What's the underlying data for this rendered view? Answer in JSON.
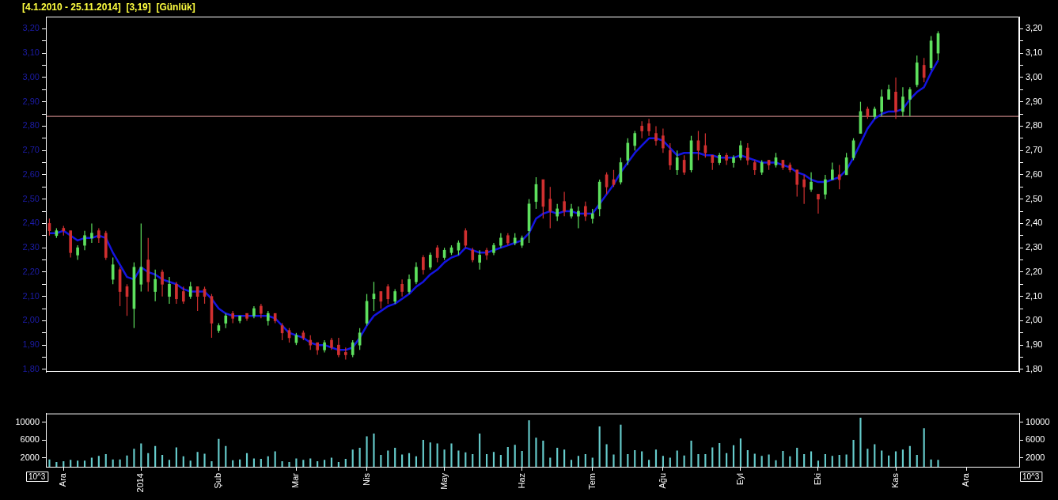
{
  "chart_data": [
    {
      "type": "candlestick",
      "title": "[4.1.2010 - 25.11.2014]  [3,19]  [Günlük]",
      "categories": [
        null,
        null,
        null,
        null,
        null,
        null,
        null,
        null,
        null,
        null,
        null,
        null,
        null,
        null,
        null,
        null,
        null,
        null,
        null,
        null,
        null,
        null,
        null,
        null,
        null,
        null,
        null,
        null,
        null,
        null,
        null,
        null,
        null,
        null,
        null,
        null,
        null,
        null,
        null,
        null,
        null,
        null,
        null,
        null,
        null,
        null,
        null,
        null,
        null,
        null,
        null,
        null,
        null,
        null,
        null,
        null,
        null,
        null,
        null,
        null,
        null,
        null,
        null,
        null,
        null,
        null,
        null,
        null,
        null,
        null,
        null,
        null,
        null,
        null,
        null,
        null,
        null,
        null,
        null,
        null,
        null,
        null,
        null,
        null,
        null,
        null,
        null,
        null,
        null,
        null,
        null,
        null,
        null,
        null,
        null,
        null,
        null,
        null,
        null,
        null,
        null,
        null,
        null,
        null,
        null,
        null,
        null,
        null,
        null,
        null,
        null,
        null,
        null,
        null,
        null,
        null,
        null,
        null,
        null,
        null,
        null,
        null,
        null,
        null,
        null,
        null,
        null,
        null,
        null,
        null,
        null,
        null,
        null,
        null,
        null,
        null,
        null,
        null
      ],
      "ohlc": [
        [
          2.4,
          2.42,
          2.35,
          2.37
        ],
        [
          2.35,
          2.38,
          2.34,
          2.37
        ],
        [
          2.38,
          2.39,
          2.35,
          2.37
        ],
        [
          2.37,
          2.37,
          2.26,
          2.28
        ],
        [
          2.27,
          2.31,
          2.25,
          2.3
        ],
        [
          2.31,
          2.37,
          2.29,
          2.35
        ],
        [
          2.34,
          2.4,
          2.32,
          2.36
        ],
        [
          2.37,
          2.38,
          2.32,
          2.34
        ],
        [
          2.36,
          2.37,
          2.25,
          2.26
        ],
        [
          2.17,
          2.26,
          2.15,
          2.23
        ],
        [
          2.21,
          2.22,
          2.06,
          2.12
        ],
        [
          2.14,
          2.15,
          2.02,
          2.1
        ],
        [
          2.05,
          2.24,
          1.97,
          2.22
        ],
        [
          2.15,
          2.4,
          2.12,
          2.22
        ],
        [
          2.25,
          2.34,
          2.12,
          2.16
        ],
        [
          2.12,
          2.21,
          2.08,
          2.17
        ],
        [
          2.2,
          2.21,
          2.1,
          2.15
        ],
        [
          2.1,
          2.18,
          2.07,
          2.15
        ],
        [
          2.15,
          2.16,
          2.07,
          2.09
        ],
        [
          2.12,
          2.14,
          2.07,
          2.08
        ],
        [
          2.1,
          2.16,
          2.09,
          2.14
        ],
        [
          2.14,
          2.14,
          2.04,
          2.1
        ],
        [
          2.13,
          2.14,
          2.07,
          2.1
        ],
        [
          2.1,
          2.11,
          1.93,
          1.99
        ],
        [
          1.96,
          1.99,
          1.95,
          1.98
        ],
        [
          1.99,
          2.03,
          1.97,
          2.02
        ],
        [
          2.03,
          2.04,
          1.99,
          2.01
        ],
        [
          2.0,
          2.02,
          1.99,
          2.02
        ],
        [
          2.03,
          2.03,
          2.0,
          2.01
        ],
        [
          2.02,
          2.06,
          2.01,
          2.05
        ],
        [
          2.06,
          2.07,
          2.01,
          2.03
        ],
        [
          2.0,
          2.04,
          1.98,
          2.03
        ],
        [
          2.03,
          2.03,
          1.99,
          2.0
        ],
        [
          1.98,
          1.99,
          1.92,
          1.95
        ],
        [
          1.96,
          1.97,
          1.91,
          1.93
        ],
        [
          1.91,
          1.95,
          1.9,
          1.94
        ],
        [
          1.95,
          1.96,
          1.92,
          1.93
        ],
        [
          1.92,
          1.94,
          1.88,
          1.9
        ],
        [
          1.91,
          1.91,
          1.86,
          1.88
        ],
        [
          1.88,
          1.92,
          1.87,
          1.91
        ],
        [
          1.92,
          1.93,
          1.88,
          1.89
        ],
        [
          1.9,
          1.93,
          1.85,
          1.86
        ],
        [
          1.87,
          1.89,
          1.84,
          1.86
        ],
        [
          1.86,
          1.92,
          1.85,
          1.91
        ],
        [
          1.9,
          1.97,
          1.88,
          1.95
        ],
        [
          1.99,
          2.11,
          1.98,
          2.08
        ],
        [
          2.09,
          2.16,
          2.04,
          2.11
        ],
        [
          2.12,
          2.12,
          2.05,
          2.08
        ],
        [
          2.14,
          2.15,
          2.07,
          2.09
        ],
        [
          2.08,
          2.13,
          2.07,
          2.12
        ],
        [
          2.15,
          2.17,
          2.1,
          2.12
        ],
        [
          2.12,
          2.19,
          2.11,
          2.17
        ],
        [
          2.16,
          2.24,
          2.15,
          2.22
        ],
        [
          2.26,
          2.27,
          2.19,
          2.21
        ],
        [
          2.22,
          2.28,
          2.21,
          2.27
        ],
        [
          2.3,
          2.31,
          2.24,
          2.26
        ],
        [
          2.26,
          2.3,
          2.25,
          2.29
        ],
        [
          2.28,
          2.31,
          2.27,
          2.3
        ],
        [
          2.29,
          2.33,
          2.27,
          2.32
        ],
        [
          2.37,
          2.38,
          2.3,
          2.31
        ],
        [
          2.29,
          2.3,
          2.24,
          2.25
        ],
        [
          2.24,
          2.29,
          2.21,
          2.27
        ],
        [
          2.29,
          2.3,
          2.25,
          2.27
        ],
        [
          2.28,
          2.32,
          2.27,
          2.31
        ],
        [
          2.31,
          2.36,
          2.3,
          2.34
        ],
        [
          2.35,
          2.36,
          2.31,
          2.32
        ],
        [
          2.32,
          2.36,
          2.31,
          2.34
        ],
        [
          2.31,
          2.35,
          2.3,
          2.34
        ],
        [
          2.37,
          2.5,
          2.32,
          2.48
        ],
        [
          2.49,
          2.59,
          2.46,
          2.56
        ],
        [
          2.58,
          2.58,
          2.42,
          2.47
        ],
        [
          2.5,
          2.55,
          2.38,
          2.45
        ],
        [
          2.43,
          2.48,
          2.41,
          2.46
        ],
        [
          2.49,
          2.53,
          2.43,
          2.45
        ],
        [
          2.43,
          2.48,
          2.42,
          2.46
        ],
        [
          2.43,
          2.47,
          2.38,
          2.45
        ],
        [
          2.47,
          2.49,
          2.41,
          2.43
        ],
        [
          2.42,
          2.46,
          2.4,
          2.44
        ],
        [
          2.46,
          2.58,
          2.43,
          2.57
        ],
        [
          2.6,
          2.61,
          2.52,
          2.55
        ],
        [
          2.58,
          2.62,
          2.55,
          2.56
        ],
        [
          2.57,
          2.67,
          2.56,
          2.65
        ],
        [
          2.66,
          2.75,
          2.64,
          2.73
        ],
        [
          2.72,
          2.78,
          2.7,
          2.77
        ],
        [
          2.8,
          2.82,
          2.75,
          2.78
        ],
        [
          2.81,
          2.83,
          2.76,
          2.78
        ],
        [
          2.77,
          2.8,
          2.72,
          2.74
        ],
        [
          2.76,
          2.79,
          2.69,
          2.71
        ],
        [
          2.7,
          2.73,
          2.62,
          2.64
        ],
        [
          2.62,
          2.7,
          2.6,
          2.67
        ],
        [
          2.66,
          2.68,
          2.6,
          2.61
        ],
        [
          2.62,
          2.76,
          2.61,
          2.74
        ],
        [
          2.74,
          2.78,
          2.66,
          2.7
        ],
        [
          2.72,
          2.77,
          2.67,
          2.69
        ],
        [
          2.68,
          2.68,
          2.62,
          2.65
        ],
        [
          2.65,
          2.69,
          2.64,
          2.68
        ],
        [
          2.68,
          2.69,
          2.64,
          2.66
        ],
        [
          2.65,
          2.68,
          2.63,
          2.67
        ],
        [
          2.67,
          2.74,
          2.66,
          2.72
        ],
        [
          2.71,
          2.73,
          2.64,
          2.66
        ],
        [
          2.65,
          2.66,
          2.6,
          2.62
        ],
        [
          2.61,
          2.66,
          2.6,
          2.65
        ],
        [
          2.66,
          2.66,
          2.62,
          2.64
        ],
        [
          2.64,
          2.69,
          2.63,
          2.67
        ],
        [
          2.66,
          2.66,
          2.62,
          2.63
        ],
        [
          2.64,
          2.65,
          2.61,
          2.62
        ],
        [
          2.62,
          2.62,
          2.51,
          2.56
        ],
        [
          2.58,
          2.6,
          2.48,
          2.55
        ],
        [
          2.54,
          2.61,
          2.53,
          2.57
        ],
        [
          2.52,
          2.52,
          2.44,
          2.5
        ],
        [
          2.52,
          2.6,
          2.5,
          2.58
        ],
        [
          2.58,
          2.65,
          2.58,
          2.62
        ],
        [
          2.6,
          2.64,
          2.54,
          2.58
        ],
        [
          2.6,
          2.69,
          2.6,
          2.67
        ],
        [
          2.67,
          2.75,
          2.66,
          2.74
        ],
        [
          2.77,
          2.9,
          2.77,
          2.86
        ],
        [
          2.87,
          2.88,
          2.83,
          2.84
        ],
        [
          2.84,
          2.88,
          2.83,
          2.87
        ],
        [
          2.86,
          2.95,
          2.84,
          2.92
        ],
        [
          2.91,
          2.97,
          2.91,
          2.95
        ],
        [
          2.94,
          3.0,
          2.83,
          2.86
        ],
        [
          2.86,
          2.96,
          2.84,
          2.92
        ],
        [
          2.91,
          2.96,
          2.84,
          2.95
        ],
        [
          2.97,
          3.09,
          2.96,
          3.06
        ],
        [
          3.05,
          3.08,
          2.98,
          3.0
        ],
        [
          3.04,
          3.17,
          3.03,
          3.15
        ],
        [
          3.1,
          3.19,
          3.07,
          3.18
        ],
        null,
        null,
        null,
        null,
        null,
        null,
        null,
        null,
        null,
        null,
        null
      ],
      "colors": [
        "#d03030",
        "#5ee05e",
        "#d03030",
        "#d03030",
        "#5ee05e",
        "#5ee05e",
        "#5ee05e",
        "#d03030",
        "#d03030",
        "#5ee05e",
        "#d03030",
        "#d03030",
        "#5ee05e",
        "#5ee05e",
        "#d03030",
        "#5ee05e",
        "#d03030",
        "#5ee05e",
        "#d03030",
        "#d03030",
        "#5ee05e",
        "#d03030",
        "#d03030",
        "#d03030",
        "#5ee05e",
        "#5ee05e",
        "#d03030",
        "#5ee05e",
        "#d03030",
        "#5ee05e",
        "#d03030",
        "#5ee05e",
        "#d03030",
        "#d03030",
        "#d03030",
        "#5ee05e",
        "#d03030",
        "#d03030",
        "#d03030",
        "#5ee05e",
        "#d03030",
        "#d03030",
        "#d03030",
        "#5ee05e",
        "#5ee05e",
        "#5ee05e",
        "#5ee05e",
        "#d03030",
        "#d03030",
        "#5ee05e",
        "#d03030",
        "#5ee05e",
        "#5ee05e",
        "#d03030",
        "#5ee05e",
        "#d03030",
        "#5ee05e",
        "#5ee05e",
        "#5ee05e",
        "#d03030",
        "#d03030",
        "#5ee05e",
        "#d03030",
        "#5ee05e",
        "#5ee05e",
        "#d03030",
        "#5ee05e",
        "#5ee05e",
        "#5ee05e",
        "#5ee05e",
        "#d03030",
        "#d03030",
        "#5ee05e",
        "#d03030",
        "#5ee05e",
        "#5ee05e",
        "#d03030",
        "#5ee05e",
        "#5ee05e",
        "#d03030",
        "#d03030",
        "#5ee05e",
        "#5ee05e",
        "#5ee05e",
        "#d03030",
        "#d03030",
        "#d03030",
        "#d03030",
        "#d03030",
        "#5ee05e",
        "#d03030",
        "#5ee05e",
        "#d03030",
        "#d03030",
        "#d03030",
        "#5ee05e",
        "#d03030",
        "#5ee05e",
        "#5ee05e",
        "#d03030",
        "#d03030",
        "#5ee05e",
        "#d03030",
        "#5ee05e",
        "#d03030",
        "#d03030",
        "#d03030",
        "#d03030",
        "#5ee05e",
        "#d03030",
        "#5ee05e",
        "#5ee05e",
        "#d03030",
        "#5ee05e",
        "#5ee05e",
        "#5ee05e",
        "#d03030",
        "#5ee05e",
        "#5ee05e",
        "#5ee05e",
        "#d03030",
        "#5ee05e",
        "#5ee05e",
        "#5ee05e",
        "#d03030",
        "#5ee05e",
        "#5ee05e",
        null,
        null,
        null,
        null,
        null,
        null,
        null,
        null,
        null,
        null,
        null
      ],
      "series": [
        {
          "type": "line",
          "color": "#1414e0",
          "values": [
            2.36,
            2.36,
            2.37,
            2.35,
            2.33,
            2.34,
            2.34,
            2.35,
            2.34,
            2.28,
            2.23,
            2.18,
            2.17,
            2.22,
            2.2,
            2.19,
            2.17,
            2.16,
            2.15,
            2.13,
            2.12,
            2.12,
            2.12,
            2.09,
            2.05,
            2.03,
            2.02,
            2.02,
            2.02,
            2.02,
            2.02,
            2.02,
            2.01,
            1.98,
            1.95,
            1.94,
            1.93,
            1.91,
            1.9,
            1.9,
            1.89,
            1.88,
            1.88,
            1.89,
            1.93,
            1.98,
            2.02,
            2.04,
            2.06,
            2.07,
            2.09,
            2.11,
            2.14,
            2.16,
            2.19,
            2.21,
            2.24,
            2.26,
            2.27,
            2.3,
            2.29,
            2.28,
            2.28,
            2.29,
            2.3,
            2.31,
            2.32,
            2.33,
            2.36,
            2.42,
            2.44,
            2.45,
            2.44,
            2.45,
            2.45,
            2.44,
            2.44,
            2.44,
            2.48,
            2.52,
            2.56,
            2.61,
            2.65,
            2.69,
            2.72,
            2.75,
            2.75,
            2.74,
            2.71,
            2.68,
            2.69,
            2.69,
            2.69,
            2.68,
            2.68,
            2.67,
            2.67,
            2.67,
            2.68,
            2.67,
            2.66,
            2.65,
            2.65,
            2.65,
            2.64,
            2.63,
            2.61,
            2.6,
            2.58,
            2.57,
            2.57,
            2.58,
            2.59,
            2.62,
            2.67,
            2.73,
            2.79,
            2.83,
            2.85,
            2.86,
            2.86,
            2.87,
            2.91,
            2.94,
            2.96,
            3.02,
            3.07,
            null,
            null,
            null,
            null,
            null,
            null,
            null,
            null,
            null,
            null,
            null
          ]
        }
      ],
      "ylim": [
        1.79,
        3.25
      ],
      "yticks": [
        {
          "value": 1.8,
          "label": "1,80"
        },
        {
          "value": 1.85,
          "label": null
        },
        {
          "value": 1.9,
          "label": "1,90"
        },
        {
          "value": 1.95,
          "label": null
        },
        {
          "value": 2.0,
          "label": "2,00"
        },
        {
          "value": 2.05,
          "label": null
        },
        {
          "value": 2.1,
          "label": "2,10"
        },
        {
          "value": 2.15,
          "label": null
        },
        {
          "value": 2.2,
          "label": "2,20"
        },
        {
          "value": 2.25,
          "label": null
        },
        {
          "value": 2.3,
          "label": "2,30"
        },
        {
          "value": 2.35,
          "label": null
        },
        {
          "value": 2.4,
          "label": "2,40"
        },
        {
          "value": 2.45,
          "label": null
        },
        {
          "value": 2.5,
          "label": "2,50"
        },
        {
          "value": 2.55,
          "label": null
        },
        {
          "value": 2.6,
          "label": "2,60"
        },
        {
          "value": 2.65,
          "label": null
        },
        {
          "value": 2.7,
          "label": "2,70"
        },
        {
          "value": 2.75,
          "label": null
        },
        {
          "value": 2.8,
          "label": "2,80"
        },
        {
          "value": 2.85,
          "label": null
        },
        {
          "value": 2.9,
          "label": "2,90"
        },
        {
          "value": 2.95,
          "label": null
        },
        {
          "value": 3.0,
          "label": "3,00"
        },
        {
          "value": 3.05,
          "label": null
        },
        {
          "value": 3.1,
          "label": "3,10"
        },
        {
          "value": 3.15,
          "label": null
        },
        {
          "value": 3.2,
          "label": "3,20"
        }
      ],
      "y2lim": [
        1.79,
        3.25
      ],
      "y2ticks": [
        {
          "value": 1.8,
          "label": "1,80"
        },
        {
          "value": 1.85,
          "label": null
        },
        {
          "value": 1.9,
          "label": "1,90"
        },
        {
          "value": 1.95,
          "label": null
        },
        {
          "value": 2.0,
          "label": "2,00"
        },
        {
          "value": 2.05,
          "label": null
        },
        {
          "value": 2.1,
          "label": "2,10"
        },
        {
          "value": 2.15,
          "label": null
        },
        {
          "value": 2.2,
          "label": "2,20"
        },
        {
          "value": 2.25,
          "label": null
        },
        {
          "value": 2.3,
          "label": "2,30"
        },
        {
          "value": 2.35,
          "label": null
        },
        {
          "value": 2.4,
          "label": "2,40"
        },
        {
          "value": 2.45,
          "label": null
        },
        {
          "value": 2.5,
          "label": "2,50"
        },
        {
          "value": 2.55,
          "label": null
        },
        {
          "value": 2.6,
          "label": "2,60"
        },
        {
          "value": 2.65,
          "label": null
        },
        {
          "value": 2.7,
          "label": "2,70"
        },
        {
          "value": 2.75,
          "label": null
        },
        {
          "value": 2.8,
          "label": "2,80"
        },
        {
          "value": 2.85,
          "label": null
        },
        {
          "value": 2.9,
          "label": "2,90"
        },
        {
          "value": 2.95,
          "label": null
        },
        {
          "value": 3.0,
          "label": "3,00"
        },
        {
          "value": 3.05,
          "label": null
        },
        {
          "value": 3.1,
          "label": "3,10"
        },
        {
          "value": 3.15,
          "label": null
        },
        {
          "value": 3.2,
          "label": "3,20"
        }
      ],
      "ref_lines": [
        {
          "axis": "y",
          "value": 2.84,
          "color": "#f0a0a0"
        }
      ],
      "tick_labels": "y"
    },
    {
      "type": "bar",
      "categories": [
        null,
        null,
        "Ara",
        null,
        null,
        null,
        null,
        null,
        null,
        null,
        null,
        null,
        null,
        "2014",
        null,
        null,
        null,
        null,
        null,
        null,
        null,
        null,
        null,
        null,
        "Şub",
        null,
        null,
        null,
        null,
        null,
        null,
        null,
        null,
        null,
        null,
        "Mar",
        null,
        null,
        null,
        null,
        null,
        null,
        null,
        null,
        null,
        "Nis",
        null,
        null,
        null,
        null,
        null,
        null,
        null,
        null,
        null,
        null,
        "May",
        null,
        null,
        null,
        null,
        null,
        null,
        null,
        null,
        null,
        null,
        "Haz",
        null,
        null,
        null,
        null,
        null,
        null,
        null,
        null,
        null,
        "Tem",
        null,
        null,
        null,
        null,
        null,
        null,
        null,
        null,
        null,
        "Ağu",
        null,
        null,
        null,
        null,
        null,
        null,
        null,
        null,
        null,
        null,
        "Eyl",
        null,
        null,
        null,
        null,
        null,
        null,
        null,
        null,
        null,
        null,
        "Eki",
        null,
        null,
        null,
        null,
        null,
        null,
        null,
        null,
        null,
        null,
        "Kas",
        null,
        null,
        null,
        null,
        null,
        null,
        null,
        null,
        null,
        "Ara",
        null,
        null,
        null,
        null,
        null,
        null,
        null
      ],
      "values": [
        1600,
        1000,
        1200,
        1500,
        1300,
        1300,
        2000,
        2400,
        2800,
        1600,
        1600,
        2500,
        4000,
        5200,
        3000,
        4600,
        2600,
        1500,
        4300,
        2300,
        1300,
        3300,
        2900,
        1200,
        6200,
        4600,
        1400,
        1600,
        3000,
        1800,
        1700,
        2300,
        3400,
        1200,
        1000,
        1800,
        1500,
        1800,
        1200,
        1500,
        2000,
        1000,
        1700,
        3800,
        4200,
        6800,
        7400,
        2600,
        3600,
        4200,
        2700,
        3000,
        2300,
        6000,
        5400,
        5200,
        3800,
        5200,
        3600,
        3200,
        2800,
        7400,
        2800,
        3300,
        2600,
        4400,
        4900,
        3500,
        10400,
        6500,
        5800,
        2000,
        4200,
        3800,
        1500,
        2400,
        2800,
        2000,
        9000,
        5000,
        2700,
        9400,
        2800,
        3700,
        3400,
        1500,
        3800,
        2400,
        2000,
        3600,
        2500,
        5800,
        2800,
        2800,
        4300,
        5300,
        3000,
        4800,
        6300,
        3700,
        2900,
        2400,
        2700,
        1400,
        3500,
        2300,
        4200,
        2800,
        3400,
        1300,
        2800,
        2400,
        2600,
        2700,
        6000,
        11000,
        4000,
        5000,
        3600,
        2500,
        3400,
        3800,
        4600,
        2600,
        8600,
        1600,
        1500,
        null,
        null,
        null,
        null,
        null,
        null,
        null,
        null,
        null,
        null,
        null
      ],
      "color": "#66cccc",
      "ylabel": "10^3",
      "y2label": "10^3",
      "ylim": [
        0,
        12000
      ],
      "yticks": [
        2000,
        6000,
        10000
      ],
      "y2lim": [
        0,
        12000
      ],
      "y2ticks": [
        2000,
        6000,
        10000
      ]
    }
  ]
}
